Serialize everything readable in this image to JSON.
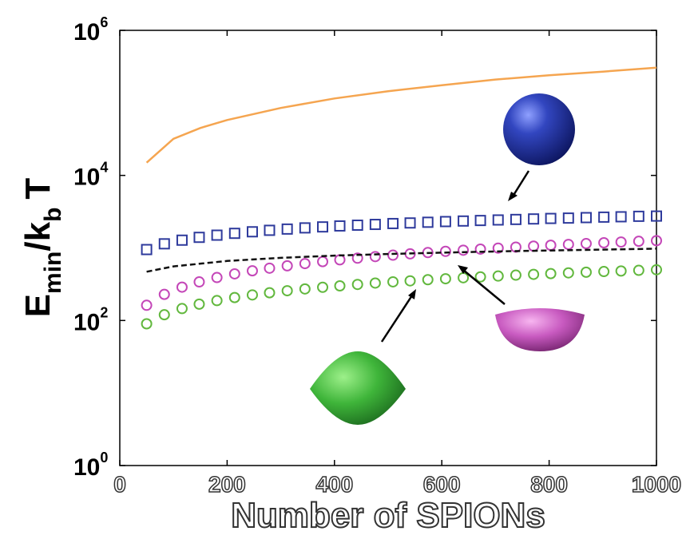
{
  "chart_data": {
    "type": "scatter-line",
    "x_label": "Number of SPIONs",
    "y_label": {
      "parts": [
        "E",
        "min",
        "/k",
        "b",
        "T"
      ]
    },
    "xlim": [
      0,
      1000
    ],
    "xticks": [
      0,
      200,
      400,
      600,
      800,
      1000
    ],
    "ylim": [
      1,
      1000000
    ],
    "log_y": true,
    "yticks": [
      {
        "value": 1,
        "label": "10",
        "exponent": "0"
      },
      {
        "value": 100,
        "label": "10",
        "exponent": "2"
      },
      {
        "value": 10000,
        "label": "10",
        "exponent": "4"
      },
      {
        "value": 1000000,
        "label": "10",
        "exponent": "6"
      }
    ],
    "series": [
      {
        "style": "line",
        "color": "#f5a550",
        "x": [
          50,
          100,
          150,
          200,
          300,
          400,
          500,
          600,
          700,
          800,
          900,
          1000
        ],
        "values": [
          15000,
          32000,
          45000,
          58000,
          85000,
          115000,
          145000,
          175000,
          210000,
          240000,
          270000,
          305000
        ]
      },
      {
        "style": "square",
        "color": "#2e3a9c",
        "x": [
          50,
          83,
          116,
          148,
          181,
          214,
          247,
          279,
          312,
          345,
          378,
          410,
          443,
          476,
          509,
          541,
          574,
          607,
          640,
          672,
          705,
          738,
          771,
          803,
          836,
          869,
          902,
          934,
          967,
          1000
        ],
        "values": [
          950,
          1140,
          1280,
          1400,
          1500,
          1590,
          1670,
          1750,
          1820,
          1890,
          1950,
          2010,
          2060,
          2110,
          2170,
          2210,
          2260,
          2310,
          2350,
          2390,
          2430,
          2470,
          2510,
          2550,
          2580,
          2620,
          2660,
          2690,
          2730,
          2750
        ]
      },
      {
        "style": "circle",
        "color": "#c447b8",
        "x": [
          50,
          83,
          116,
          148,
          181,
          214,
          247,
          279,
          312,
          345,
          378,
          410,
          443,
          476,
          509,
          541,
          574,
          607,
          640,
          672,
          705,
          738,
          771,
          803,
          836,
          869,
          902,
          934,
          967,
          1000
        ],
        "values": [
          162,
          229,
          288,
          340,
          391,
          439,
          484,
          526,
          567,
          609,
          648,
          686,
          723,
          760,
          795,
          829,
          864,
          898,
          931,
          963,
          995,
          1027,
          1059,
          1089,
          1119,
          1149,
          1179,
          1207,
          1236,
          1260
        ]
      },
      {
        "style": "circle",
        "color": "#62b83e",
        "x": [
          50,
          83,
          116,
          148,
          181,
          214,
          247,
          279,
          312,
          345,
          378,
          410,
          443,
          476,
          509,
          541,
          574,
          607,
          640,
          672,
          705,
          738,
          771,
          803,
          836,
          869,
          902,
          934,
          967,
          1000
        ],
        "values": [
          90,
          120,
          146,
          168,
          188,
          207,
          225,
          241,
          257,
          272,
          287,
          300,
          314,
          328,
          341,
          352,
          365,
          376,
          388,
          399,
          410,
          422,
          432,
          443,
          453,
          463,
          473,
          481,
          491,
          500
        ]
      },
      {
        "style": "dashed",
        "color": "#111111",
        "x": [
          50,
          100,
          200,
          300,
          400,
          500,
          600,
          700,
          800,
          900,
          1000
        ],
        "values": [
          470,
          557,
          661,
          731,
          783,
          825,
          862,
          894,
          922,
          949,
          978
        ]
      }
    ]
  }
}
